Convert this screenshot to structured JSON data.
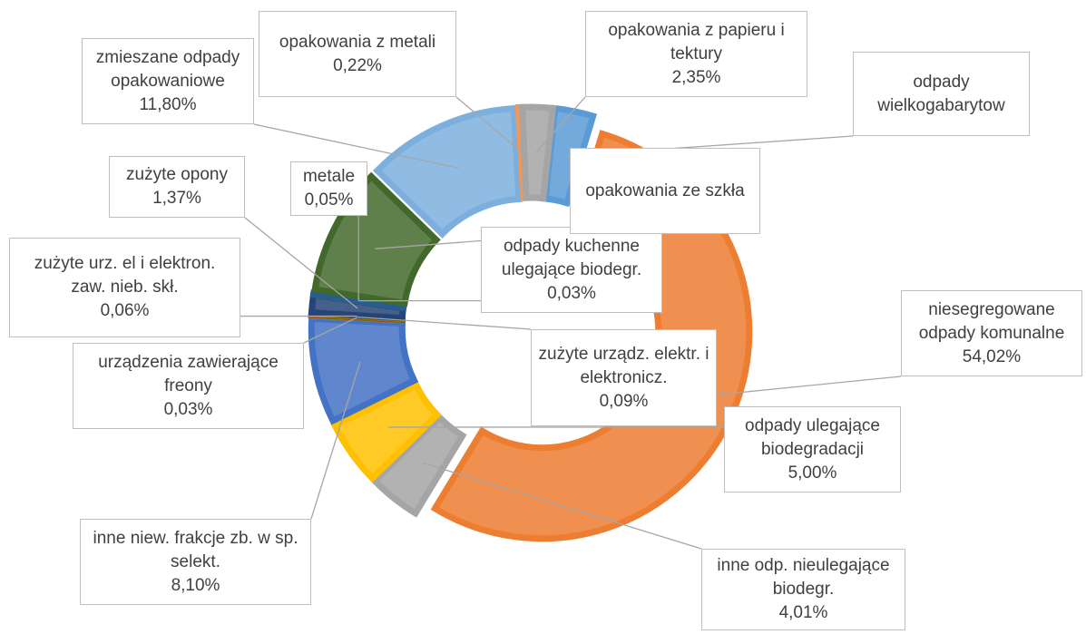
{
  "chart_data": {
    "type": "pie",
    "donut": true,
    "categories": [
      "odpady wielkogabarytow",
      "niesegregowane odpady komunalne",
      "inne odp. nieulegające biodegr.",
      "odpady ulegające biodegradacji",
      "inne niew. frakcje zb. w sp. selekt.",
      "urządzenia zawierające freony",
      "zużyte urządz. elektr. i elektronicz.",
      "zużyte urz. el i elektron. zaw. nieb. skł.",
      "zużyte opony",
      "odpady kuchenne ulegające biodegr.",
      "metale",
      "opakowania ze szkła",
      "zmieszane odpady opakowaniowe",
      "opakowania z metali",
      "opakowania z papieru i tektury"
    ],
    "values": [
      3.0,
      54.02,
      4.01,
      5.0,
      8.1,
      0.03,
      0.09,
      0.06,
      1.37,
      0.03,
      0.05,
      9.87,
      11.8,
      0.22,
      2.35
    ],
    "value_labels": [
      null,
      "54,02%",
      "4,01%",
      "5,00%",
      "8,10%",
      "0,03%",
      "0,09%",
      "0,06%",
      "1,37%",
      "0,03%",
      "0,05%",
      null,
      "11,80%",
      "0,22%",
      "2,35%"
    ],
    "colors": [
      "#5b9bd5",
      "#ed7d31",
      "#a5a5a5",
      "#ffc000",
      "#4472c4",
      "#70ad47",
      "#9e480e",
      "#997300",
      "#264478",
      "#636363",
      "#255e91",
      "#43682b",
      "#7cafdd",
      "#f1975a",
      "#a5a5a5"
    ]
  }
}
